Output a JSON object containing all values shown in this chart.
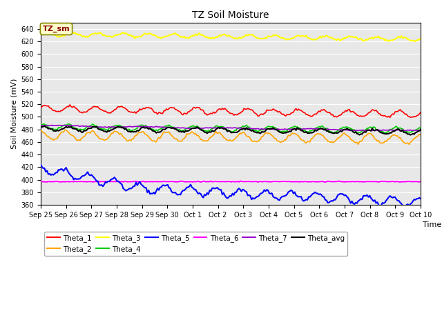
{
  "title": "TZ Soil Moisture",
  "ylabel": "Soil Moisture (mV)",
  "xlabel": "Time",
  "ylim": [
    360,
    650
  ],
  "yticks": [
    360,
    380,
    400,
    420,
    440,
    460,
    480,
    500,
    520,
    540,
    560,
    580,
    600,
    620,
    640
  ],
  "date_labels": [
    "Sep 25",
    "Sep 26",
    "Sep 27",
    "Sep 28",
    "Sep 29",
    "Sep 30",
    "Oct 1",
    "Oct 2",
    "Oct 3",
    "Oct 4",
    "Oct 5",
    "Oct 6",
    "Oct 7",
    "Oct 8",
    "Oct 9",
    "Oct 10"
  ],
  "n_points": 300,
  "background_color": "#e8e8e8",
  "series": {
    "Theta_1": {
      "color": "#ff0000",
      "lw": 1.2
    },
    "Theta_2": {
      "color": "#ffa500",
      "lw": 1.2
    },
    "Theta_3": {
      "color": "#ffff00",
      "lw": 1.5
    },
    "Theta_4": {
      "color": "#00cc00",
      "lw": 1.2
    },
    "Theta_5": {
      "color": "#0000ff",
      "lw": 1.5
    },
    "Theta_6": {
      "color": "#ff00ff",
      "lw": 1.5
    },
    "Theta_7": {
      "color": "#9900cc",
      "lw": 1.2
    },
    "Theta_avg": {
      "color": "#000000",
      "lw": 1.5
    }
  },
  "legend_box_color": "#ffffcc",
  "legend_box_text": "TZ_sm",
  "legend_box_text_color": "#880000",
  "legend_box_edge_color": "#888800"
}
